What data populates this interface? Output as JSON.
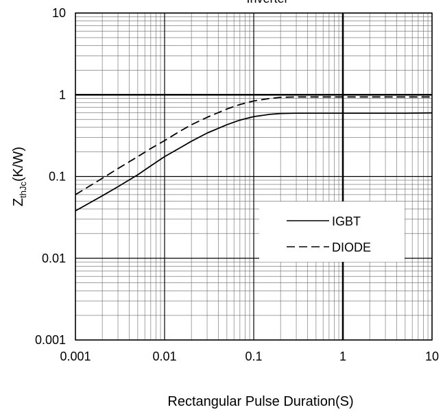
{
  "chart_data": {
    "type": "line",
    "title": "Inverter",
    "xlabel": "Rectangular Pulse Duration(S)",
    "ylabel": {
      "main": "Z",
      "sub": "thJc",
      "suffix": "(K/W)"
    },
    "xscale": "log",
    "yscale": "log",
    "xlim": [
      0.001,
      10
    ],
    "ylim": [
      0.001,
      10
    ],
    "grid": true,
    "legend_position": "center-right",
    "x_ticks": [
      {
        "value": 0.001,
        "label": "0.001"
      },
      {
        "value": 0.01,
        "label": "0.01"
      },
      {
        "value": 0.1,
        "label": "0.1"
      },
      {
        "value": 1,
        "label": "1"
      },
      {
        "value": 10,
        "label": "10"
      }
    ],
    "y_ticks": [
      {
        "value": 0.001,
        "label": "0.001"
      },
      {
        "value": 0.01,
        "label": "0.01"
      },
      {
        "value": 0.1,
        "label": "0.1"
      },
      {
        "value": 1,
        "label": "1"
      },
      {
        "value": 10,
        "label": "10"
      }
    ],
    "series": [
      {
        "name": "IGBT",
        "style": "solid",
        "color": "#000000",
        "x": [
          0.001,
          0.002,
          0.003,
          0.005,
          0.007,
          0.01,
          0.015,
          0.02,
          0.03,
          0.05,
          0.07,
          0.1,
          0.15,
          0.2,
          0.3,
          0.5,
          1,
          2,
          5,
          10
        ],
        "y": [
          0.038,
          0.058,
          0.075,
          0.105,
          0.135,
          0.175,
          0.225,
          0.27,
          0.34,
          0.43,
          0.49,
          0.54,
          0.575,
          0.59,
          0.595,
          0.595,
          0.595,
          0.595,
          0.595,
          0.6
        ]
      },
      {
        "name": "DIODE",
        "style": "dashed",
        "color": "#000000",
        "x": [
          0.001,
          0.002,
          0.003,
          0.005,
          0.007,
          0.01,
          0.015,
          0.02,
          0.03,
          0.05,
          0.07,
          0.1,
          0.15,
          0.2,
          0.3,
          0.5,
          1,
          2,
          5,
          10
        ],
        "y": [
          0.06,
          0.095,
          0.125,
          0.175,
          0.22,
          0.275,
          0.36,
          0.43,
          0.53,
          0.67,
          0.76,
          0.84,
          0.9,
          0.93,
          0.94,
          0.94,
          0.94,
          0.94,
          0.94,
          0.94
        ]
      }
    ]
  }
}
